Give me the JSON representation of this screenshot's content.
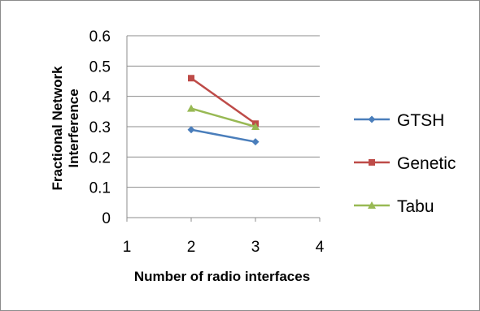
{
  "chart_data": {
    "type": "line",
    "title": "",
    "xlabel": "Number of radio interfaces",
    "ylabel_lines": [
      "Fractional Network",
      "Interference"
    ],
    "x_ticks": [
      1,
      2,
      3,
      4
    ],
    "y_ticks": [
      0,
      0.1,
      0.2,
      0.3,
      0.4,
      0.5,
      0.6
    ],
    "y_tick_labels": [
      "0",
      "0.1",
      "0.2",
      "0.3",
      "0.4",
      "0.5",
      "0.6"
    ],
    "xlim": [
      1,
      4
    ],
    "ylim": [
      0,
      0.6
    ],
    "grid": "horizontal",
    "legend_position": "right",
    "series": [
      {
        "name": "GTSH",
        "x": [
          2,
          3
        ],
        "y": [
          0.29,
          0.25
        ],
        "color": "#4a7ebb",
        "marker": "diamond"
      },
      {
        "name": "Genetic",
        "x": [
          2,
          3
        ],
        "y": [
          0.46,
          0.31
        ],
        "color": "#be4b48",
        "marker": "square"
      },
      {
        "name": "Tabu",
        "x": [
          2,
          3
        ],
        "y": [
          0.36,
          0.3
        ],
        "color": "#98b954",
        "marker": "triangle"
      }
    ]
  }
}
